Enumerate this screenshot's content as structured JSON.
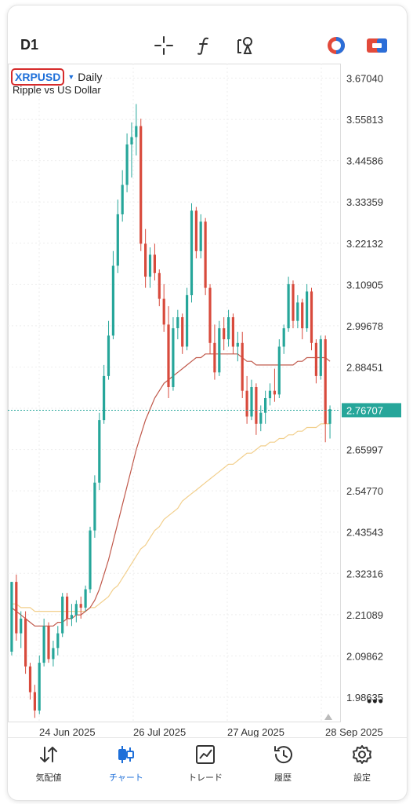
{
  "toolbar": {
    "timeframe": "D1",
    "icons": [
      "crosshair-icon",
      "function-icon",
      "objects-icon",
      "color-scheme-icon",
      "trade-icon"
    ]
  },
  "chart_header": {
    "symbol": "XRPUSD",
    "period": "Daily",
    "description": "Ripple vs US Dollar"
  },
  "chart_data": {
    "type": "candlestick",
    "price_labels": [
      "3.67040",
      "3.55813",
      "3.44586",
      "3.33359",
      "3.22132",
      "3.10905",
      "2.99678",
      "2.88451",
      "2.77224",
      "2.65997",
      "2.54770",
      "2.43543",
      "2.32316",
      "2.21089",
      "2.09862",
      "1.98635"
    ],
    "ylim": [
      1.92,
      3.71
    ],
    "date_labels": [
      "24 Jun 2025",
      "26 Jul 2025",
      "27 Aug 2025",
      "28 Sep 2025"
    ],
    "current_price": "2.76707",
    "current_value": 2.76707,
    "colors": {
      "up": "#26a69a",
      "down": "#d84a3c",
      "ma_fast": "#c0584a",
      "ma_slow": "#f2cf8c",
      "grid": "#eeeeee",
      "price_line": "#26a69a"
    },
    "grid": true,
    "candles": [
      [
        2.11,
        2.3,
        2.1,
        2.3
      ],
      [
        2.3,
        2.32,
        2.14,
        2.16
      ],
      [
        2.16,
        2.22,
        2.12,
        2.2
      ],
      [
        2.2,
        2.22,
        2.05,
        2.07
      ],
      [
        2.07,
        2.08,
        1.98,
        2.0
      ],
      [
        2.0,
        2.02,
        1.93,
        1.95
      ],
      [
        1.95,
        2.1,
        1.94,
        2.08
      ],
      [
        2.08,
        2.2,
        2.07,
        2.18
      ],
      [
        2.18,
        2.19,
        2.08,
        2.09
      ],
      [
        2.09,
        2.14,
        2.07,
        2.12
      ],
      [
        2.12,
        2.18,
        2.1,
        2.16
      ],
      [
        2.16,
        2.27,
        2.15,
        2.26
      ],
      [
        2.26,
        2.27,
        2.18,
        2.2
      ],
      [
        2.2,
        2.24,
        2.18,
        2.21
      ],
      [
        2.21,
        2.25,
        2.19,
        2.24
      ],
      [
        2.24,
        2.26,
        2.2,
        2.23
      ],
      [
        2.23,
        2.29,
        2.22,
        2.28
      ],
      [
        2.28,
        2.45,
        2.27,
        2.44
      ],
      [
        2.44,
        2.59,
        2.42,
        2.57
      ],
      [
        2.57,
        2.76,
        2.55,
        2.74
      ],
      [
        2.74,
        2.89,
        2.73,
        2.86
      ],
      [
        2.86,
        3.01,
        2.85,
        2.97
      ],
      [
        2.97,
        3.2,
        2.96,
        3.16
      ],
      [
        3.16,
        3.34,
        3.14,
        3.3
      ],
      [
        3.3,
        3.42,
        3.28,
        3.38
      ],
      [
        3.38,
        3.52,
        3.36,
        3.49
      ],
      [
        3.49,
        3.55,
        3.4,
        3.51
      ],
      [
        3.51,
        3.6,
        3.46,
        3.54
      ],
      [
        3.54,
        3.56,
        3.2,
        3.22
      ],
      [
        3.22,
        3.26,
        3.1,
        3.13
      ],
      [
        3.13,
        3.21,
        3.1,
        3.19
      ],
      [
        3.19,
        3.22,
        3.12,
        3.14
      ],
      [
        3.14,
        3.15,
        3.05,
        3.07
      ],
      [
        3.07,
        3.11,
        2.98,
        3.0
      ],
      [
        3.0,
        3.05,
        2.8,
        2.83
      ],
      [
        2.83,
        3.02,
        2.82,
        2.99
      ],
      [
        2.99,
        3.04,
        2.96,
        3.02
      ],
      [
        3.02,
        3.03,
        2.92,
        2.94
      ],
      [
        2.94,
        3.1,
        2.93,
        3.08
      ],
      [
        3.08,
        3.33,
        3.06,
        3.31
      ],
      [
        3.31,
        3.32,
        3.18,
        3.2
      ],
      [
        3.2,
        3.3,
        3.18,
        3.28
      ],
      [
        3.28,
        3.29,
        3.08,
        3.1
      ],
      [
        3.1,
        3.11,
        2.92,
        2.95
      ],
      [
        2.95,
        3.0,
        2.85,
        2.87
      ],
      [
        2.87,
        3.01,
        2.86,
        2.99
      ],
      [
        2.99,
        3.02,
        2.93,
        2.96
      ],
      [
        2.96,
        3.04,
        2.94,
        3.02
      ],
      [
        3.02,
        3.03,
        2.92,
        2.94
      ],
      [
        2.94,
        2.98,
        2.9,
        2.95
      ],
      [
        2.95,
        2.98,
        2.8,
        2.82
      ],
      [
        2.82,
        2.86,
        2.73,
        2.75
      ],
      [
        2.75,
        2.85,
        2.74,
        2.83
      ],
      [
        2.83,
        2.84,
        2.7,
        2.73
      ],
      [
        2.73,
        2.78,
        2.71,
        2.76
      ],
      [
        2.76,
        2.82,
        2.73,
        2.8
      ],
      [
        2.8,
        2.84,
        2.78,
        2.82
      ],
      [
        2.82,
        2.88,
        2.79,
        2.81
      ],
      [
        2.81,
        2.96,
        2.8,
        2.94
      ],
      [
        2.94,
        3.0,
        2.92,
        2.99
      ],
      [
        2.99,
        3.13,
        2.98,
        3.11
      ],
      [
        3.11,
        3.12,
        2.99,
        3.01
      ],
      [
        3.01,
        3.08,
        2.99,
        3.06
      ],
      [
        3.06,
        3.07,
        2.96,
        2.99
      ],
      [
        2.99,
        3.11,
        2.98,
        3.09
      ],
      [
        3.09,
        3.1,
        2.93,
        2.95
      ],
      [
        2.95,
        2.96,
        2.84,
        2.86
      ],
      [
        2.86,
        2.97,
        2.85,
        2.96
      ],
      [
        2.96,
        2.97,
        2.68,
        2.73
      ],
      [
        2.73,
        2.78,
        2.69,
        2.77
      ]
    ],
    "ma_fast": [
      2.23,
      2.22,
      2.21,
      2.2,
      2.19,
      2.18,
      2.18,
      2.18,
      2.18,
      2.18,
      2.19,
      2.19,
      2.2,
      2.2,
      2.21,
      2.21,
      2.22,
      2.23,
      2.25,
      2.28,
      2.32,
      2.36,
      2.41,
      2.46,
      2.51,
      2.56,
      2.61,
      2.66,
      2.7,
      2.74,
      2.77,
      2.8,
      2.82,
      2.84,
      2.85,
      2.86,
      2.87,
      2.88,
      2.89,
      2.9,
      2.91,
      2.91,
      2.92,
      2.92,
      2.92,
      2.92,
      2.92,
      2.92,
      2.92,
      2.92,
      2.91,
      2.9,
      2.9,
      2.89,
      2.89,
      2.89,
      2.89,
      2.89,
      2.89,
      2.89,
      2.89,
      2.89,
      2.9,
      2.9,
      2.91,
      2.91,
      2.91,
      2.91,
      2.91,
      2.9
    ],
    "ma_slow": [
      2.24,
      2.24,
      2.23,
      2.23,
      2.23,
      2.22,
      2.22,
      2.22,
      2.22,
      2.22,
      2.22,
      2.22,
      2.22,
      2.22,
      2.22,
      2.22,
      2.22,
      2.23,
      2.23,
      2.24,
      2.25,
      2.26,
      2.28,
      2.29,
      2.31,
      2.33,
      2.35,
      2.37,
      2.39,
      2.4,
      2.42,
      2.44,
      2.45,
      2.47,
      2.48,
      2.49,
      2.5,
      2.52,
      2.53,
      2.54,
      2.55,
      2.56,
      2.57,
      2.58,
      2.59,
      2.6,
      2.61,
      2.62,
      2.62,
      2.63,
      2.64,
      2.65,
      2.65,
      2.66,
      2.67,
      2.67,
      2.68,
      2.68,
      2.69,
      2.69,
      2.7,
      2.7,
      2.71,
      2.71,
      2.72,
      2.72,
      2.72,
      2.73,
      2.73,
      2.73
    ]
  },
  "nav": [
    {
      "label": "気配値",
      "icon": "quotes-icon",
      "active": false
    },
    {
      "label": "チャート",
      "icon": "chart-icon",
      "active": true
    },
    {
      "label": "トレード",
      "icon": "trade-chart-icon",
      "active": false
    },
    {
      "label": "履歴",
      "icon": "history-icon",
      "active": false
    },
    {
      "label": "設定",
      "icon": "settings-icon",
      "active": false
    }
  ]
}
